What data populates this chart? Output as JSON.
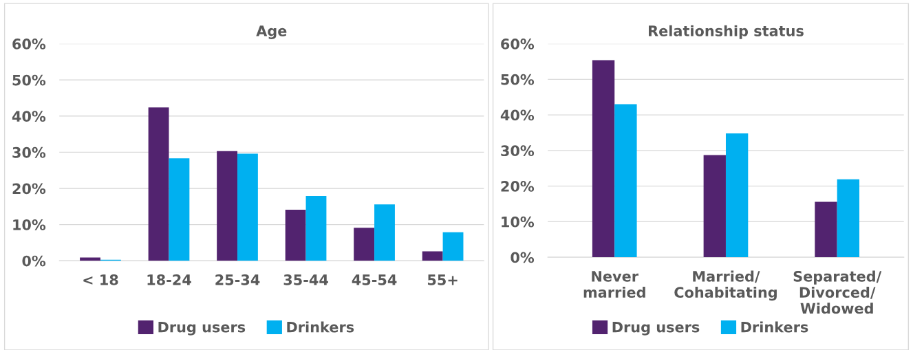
{
  "chart_data": [
    {
      "type": "bar",
      "title": "Age",
      "categories": [
        "< 18",
        "18-24",
        "25-34",
        "35-44",
        "45-54",
        "55+"
      ],
      "series": [
        {
          "name": "Drug users",
          "color": "#52236f",
          "values": [
            0.9,
            42.4,
            30.3,
            14.1,
            9.1,
            2.6
          ]
        },
        {
          "name": "Drinkers",
          "color": "#00b0f0",
          "values": [
            0.3,
            28.3,
            29.6,
            17.9,
            15.6,
            7.9
          ]
        }
      ],
      "ylim": [
        0,
        60
      ],
      "yticks": [
        {
          "value": 0,
          "label": "0%"
        },
        {
          "value": 10,
          "label": "10%"
        },
        {
          "value": 20,
          "label": "20%"
        },
        {
          "value": 30,
          "label": "30%"
        },
        {
          "value": 40,
          "label": "40%"
        },
        {
          "value": 50,
          "label": "50%"
        },
        {
          "value": 60,
          "label": "60%"
        }
      ],
      "grid": "y",
      "legend": "bottom"
    },
    {
      "type": "bar",
      "title": "Relationship status",
      "categories": [
        "Never\nmarried",
        "Married/\nCohabitating",
        "Separated/\nDivorced/\nWidowed"
      ],
      "series": [
        {
          "name": "Drug users",
          "color": "#52236f",
          "values": [
            55.4,
            28.7,
            15.6
          ]
        },
        {
          "name": "Drinkers",
          "color": "#00b0f0",
          "values": [
            43.0,
            34.8,
            21.9
          ]
        }
      ],
      "ylim": [
        0,
        60
      ],
      "yticks": [
        {
          "value": 0,
          "label": "0%"
        },
        {
          "value": 10,
          "label": "10%"
        },
        {
          "value": 20,
          "label": "20%"
        },
        {
          "value": 30,
          "label": "30%"
        },
        {
          "value": 40,
          "label": "40%"
        },
        {
          "value": 50,
          "label": "50%"
        },
        {
          "value": 60,
          "label": "60%"
        }
      ],
      "grid": "y",
      "legend": "bottom"
    }
  ]
}
